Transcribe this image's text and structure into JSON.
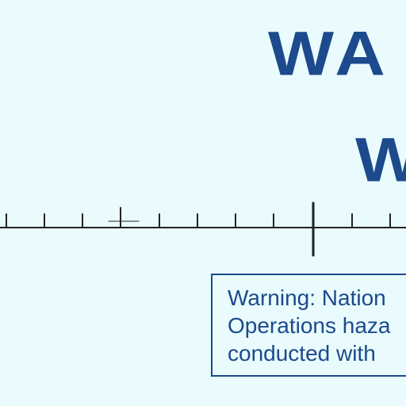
{
  "colors": {
    "background": "#e9fbfd",
    "text": "#1c4a8c",
    "scale_line": "#222222"
  },
  "heading": {
    "line1": "WA",
    "line2": "W"
  },
  "scale_bar": {
    "minor_tick_count": 9,
    "major_tick_position": 8
  },
  "warning_box": {
    "line1": "Warning: Nation",
    "line2": "Operations haza",
    "line3": "conducted with"
  }
}
